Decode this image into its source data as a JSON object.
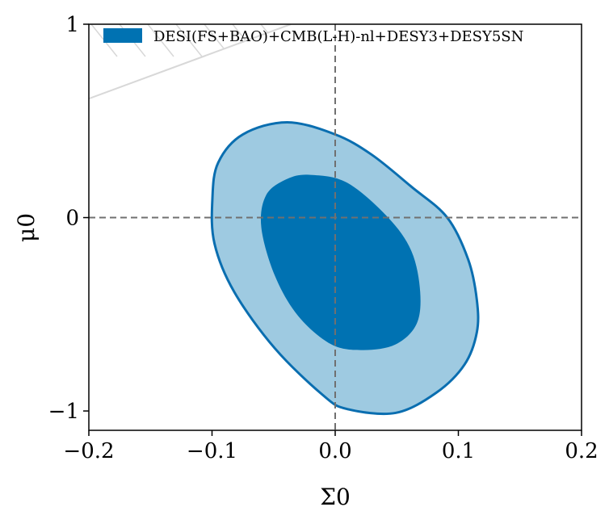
{
  "chart_data": {
    "type": "contour",
    "xlabel": "Σ0",
    "ylabel": "μ0",
    "xlim": [
      -0.2,
      0.2
    ],
    "ylim": [
      -1.1,
      1.0
    ],
    "xticks": [
      -0.2,
      -0.1,
      0.0,
      0.1,
      0.2
    ],
    "xtick_labels": [
      "−0.2",
      "−0.1",
      "0.0",
      "0.1",
      "0.2"
    ],
    "yticks": [
      -1,
      0,
      1
    ],
    "ytick_labels": [
      "−1",
      "0",
      "1"
    ],
    "grid": false,
    "legend": {
      "placement": "top-left",
      "entries": [
        "DESI(FS+BAO)+CMB(L-H)-nl+DESY3+DESY5SN"
      ]
    },
    "reference_lines": {
      "x": 0,
      "y": 0
    },
    "excluded_region_boundary": [
      [
        -0.2,
        0.615
      ],
      [
        -0.036,
        1.0
      ]
    ],
    "series": [
      {
        "name": "DESI(FS+BAO)+CMB(L-H)-nl+DESY3+DESY5SN",
        "color": "#0072b2",
        "contour_95": [
          [
            -0.0997,
            0.096
          ],
          [
            -0.095,
            0.284
          ],
          [
            -0.075,
            0.43
          ],
          [
            -0.039,
            0.493
          ],
          [
            0,
            0.43
          ],
          [
            0.0295,
            0.326
          ],
          [
            0.062,
            0.159
          ],
          [
            0.091,
            0
          ],
          [
            0.108,
            -0.217
          ],
          [
            0.115,
            -0.426
          ],
          [
            0.115,
            -0.593
          ],
          [
            0.105,
            -0.76
          ],
          [
            0.082,
            -0.906
          ],
          [
            0.049,
            -1.01
          ],
          [
            0.0098,
            -0.99
          ],
          [
            -0.0098,
            -0.919
          ],
          [
            -0.049,
            -0.676
          ],
          [
            -0.082,
            -0.384
          ],
          [
            -0.098,
            -0.134
          ]
        ],
        "contour_68": [
          [
            -0.06,
            -0.05
          ],
          [
            -0.056,
            0.117
          ],
          [
            -0.039,
            0.2
          ],
          [
            -0.02,
            0.221
          ],
          [
            0.0098,
            0.18
          ],
          [
            0.043,
            0
          ],
          [
            0.062,
            -0.175
          ],
          [
            0.069,
            -0.384
          ],
          [
            0.066,
            -0.551
          ],
          [
            0.049,
            -0.656
          ],
          [
            0.023,
            -0.685
          ],
          [
            -0.003,
            -0.656
          ],
          [
            -0.03,
            -0.509
          ],
          [
            -0.049,
            -0.3
          ]
        ]
      }
    ],
    "colors": {
      "inner": "#0072b2",
      "outer": "#9ecae1",
      "edge": "#0a6eb0",
      "ref_line": "#707070",
      "hatch": "#d8d8d8"
    }
  }
}
